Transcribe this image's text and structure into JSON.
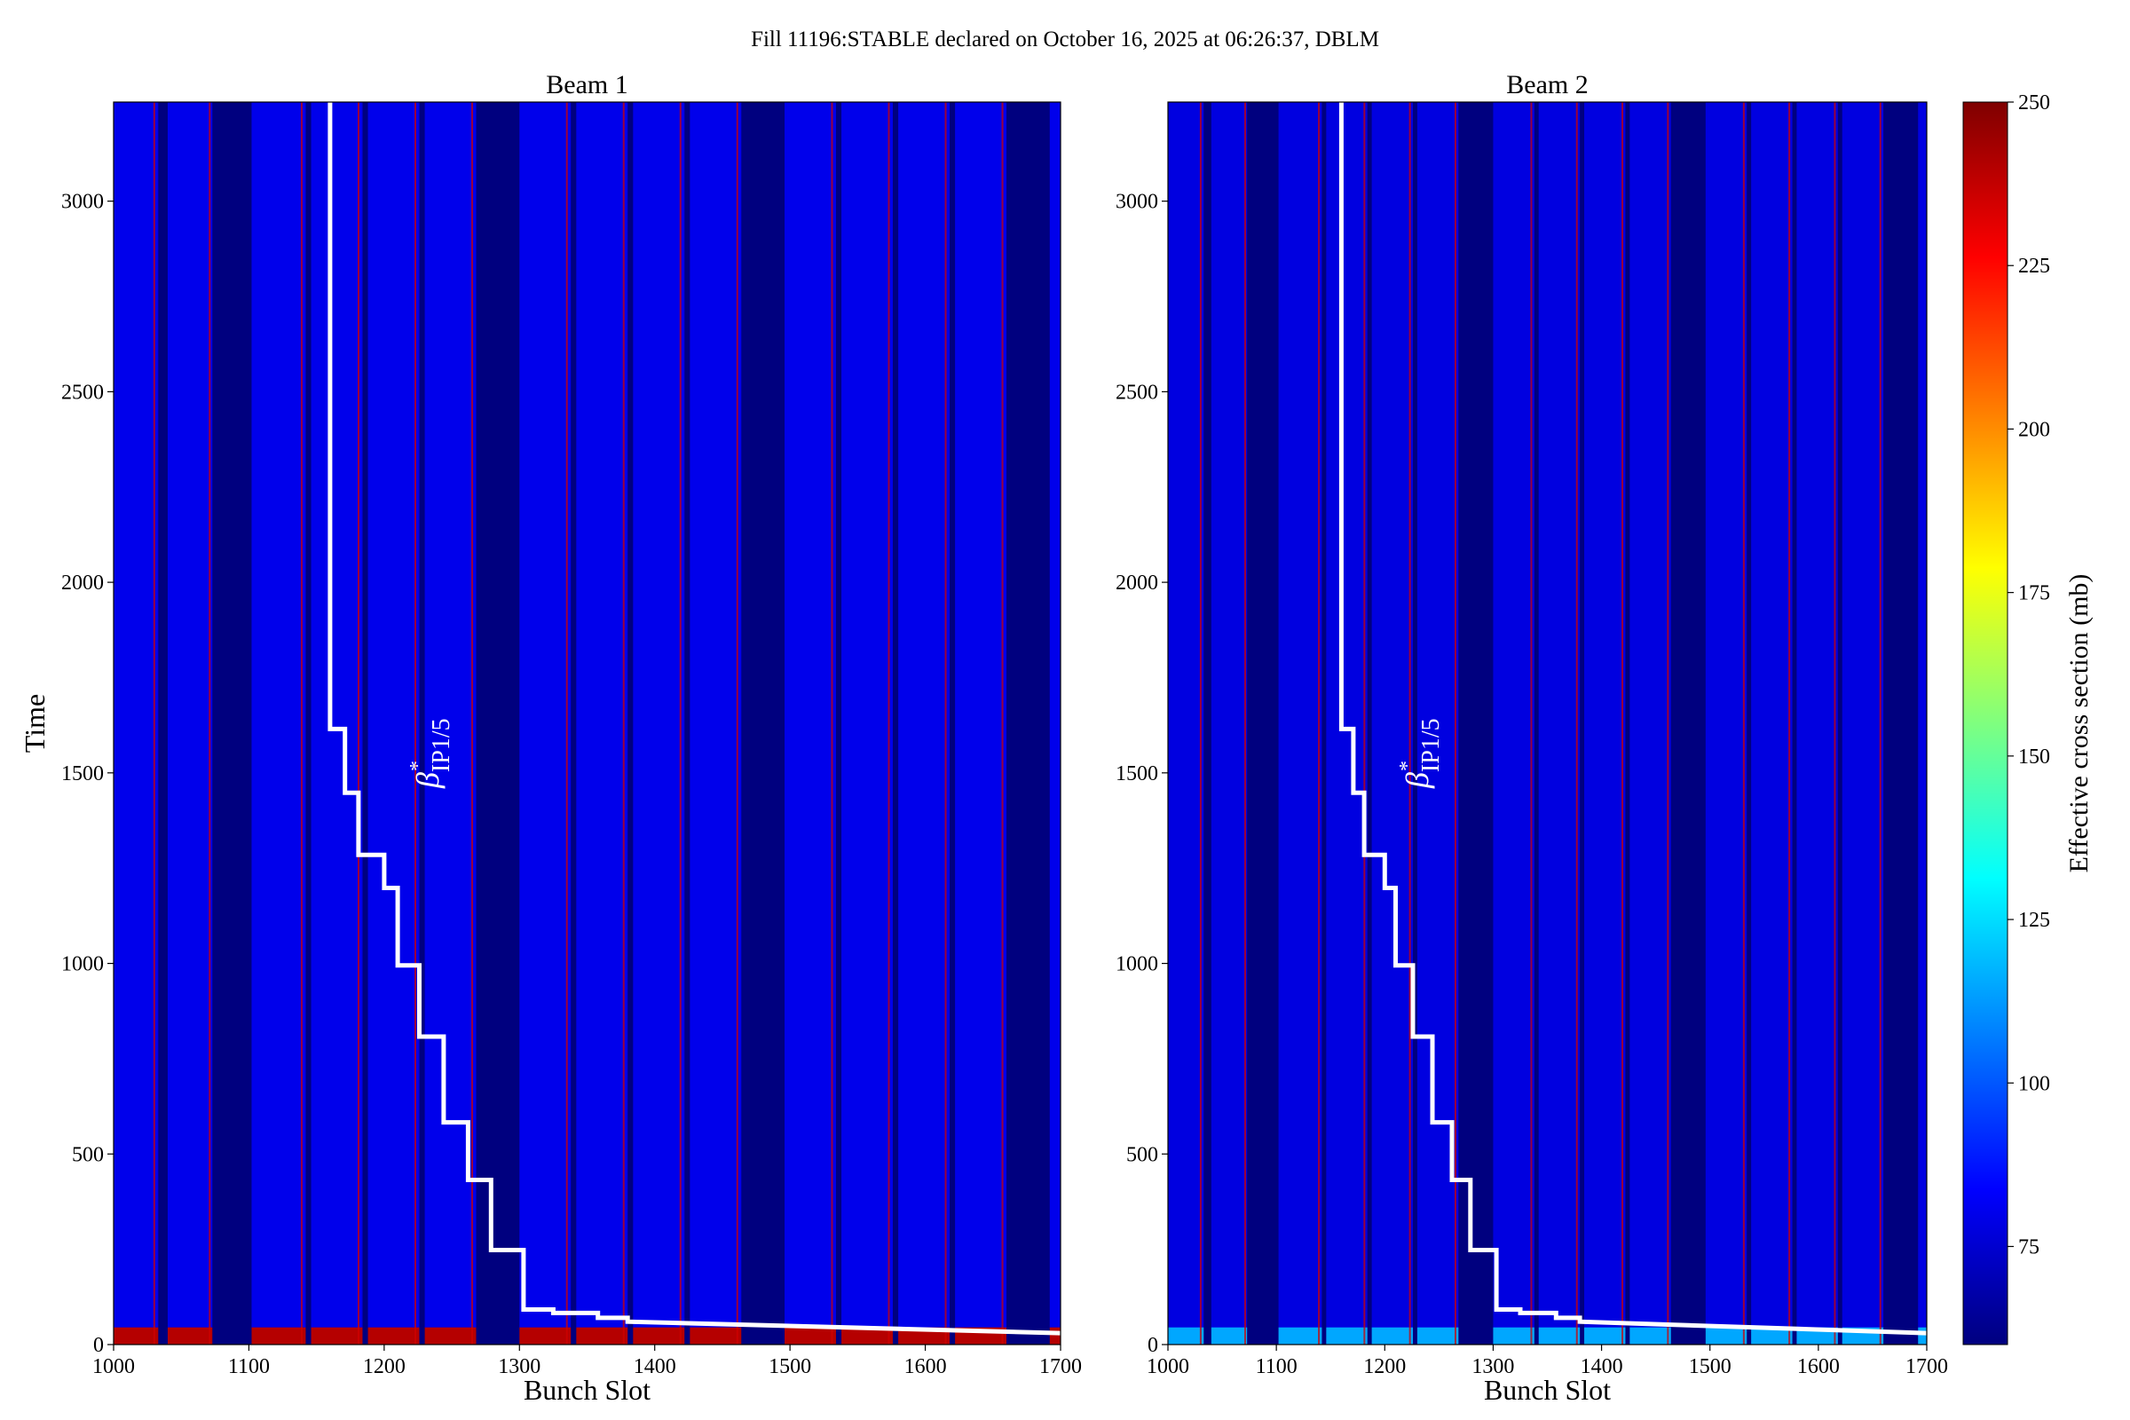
{
  "figure": {
    "suptitle": "Fill 11196:STABLE declared on October 16, 2025 at 06:26:37, DBLM"
  },
  "colorbar": {
    "label": "Effective cross section (mb)",
    "ticks": [
      75,
      100,
      125,
      150,
      175,
      200,
      225,
      250
    ],
    "range": [
      60,
      250
    ],
    "colormap": [
      "#00007f",
      "#0000ff",
      "#007fff",
      "#00ffff",
      "#7fff7f",
      "#ffff00",
      "#ff7f00",
      "#ff0000",
      "#7f0000"
    ]
  },
  "annotation": {
    "symbol": "β",
    "superscript": "*",
    "subscript": "IP1/5"
  },
  "chart_data": [
    {
      "type": "heatmap",
      "title": "Beam 1",
      "xlabel": "Bunch Slot",
      "ylabel": "Time",
      "xlim": [
        1000,
        1700
      ],
      "ylim": [
        0,
        3260
      ],
      "xticks": [
        1000,
        1100,
        1200,
        1300,
        1400,
        1500,
        1600,
        1700
      ],
      "yticks": [
        0,
        500,
        1000,
        1500,
        2000,
        2500,
        3000
      ],
      "empty_slot_ranges": [
        [
          1033,
          1040
        ],
        [
          1073,
          1102
        ],
        [
          1142,
          1146
        ],
        [
          1184,
          1188
        ],
        [
          1226,
          1230
        ],
        [
          1268,
          1300
        ],
        [
          1338,
          1342
        ],
        [
          1380,
          1384
        ],
        [
          1422,
          1426
        ],
        [
          1464,
          1496
        ],
        [
          1534,
          1538
        ],
        [
          1576,
          1580
        ],
        [
          1618,
          1622
        ],
        [
          1660,
          1692
        ]
      ],
      "high_cross_section_columns": [
        1030,
        1071,
        1139,
        1181,
        1223,
        1265,
        1335,
        1377,
        1419,
        1461,
        1531,
        1573,
        1615,
        1657
      ],
      "filled_background_value": 80,
      "low_time_hot_band": {
        "time_range": [
          0,
          45
        ],
        "value": 240
      },
      "beta_star_curve": {
        "x": [
          1160,
          1160,
          1171,
          1171,
          1181,
          1181,
          1200,
          1200,
          1210,
          1210,
          1226,
          1226,
          1244,
          1244,
          1262,
          1262,
          1279,
          1279,
          1303,
          1303,
          1325,
          1325,
          1358,
          1358,
          1380,
          1380,
          1700
        ],
        "y": [
          3260,
          1615,
          1615,
          1448,
          1448,
          1285,
          1285,
          1198,
          1198,
          995,
          995,
          808,
          808,
          583,
          583,
          432,
          432,
          248,
          248,
          92,
          92,
          83,
          83,
          70,
          70,
          60,
          30
        ]
      }
    },
    {
      "type": "heatmap",
      "title": "Beam 2",
      "xlabel": "Bunch Slot",
      "ylabel": "",
      "xlim": [
        1000,
        1700
      ],
      "ylim": [
        0,
        3260
      ],
      "xticks": [
        1000,
        1100,
        1200,
        1300,
        1400,
        1500,
        1600,
        1700
      ],
      "yticks": [
        0,
        500,
        1000,
        1500,
        2000,
        2500,
        3000
      ],
      "empty_slot_ranges": [
        [
          1033,
          1040
        ],
        [
          1073,
          1102
        ],
        [
          1142,
          1146
        ],
        [
          1184,
          1188
        ],
        [
          1226,
          1230
        ],
        [
          1268,
          1300
        ],
        [
          1338,
          1342
        ],
        [
          1380,
          1384
        ],
        [
          1422,
          1426
        ],
        [
          1464,
          1496
        ],
        [
          1534,
          1538
        ],
        [
          1576,
          1580
        ],
        [
          1618,
          1622
        ],
        [
          1660,
          1692
        ]
      ],
      "high_cross_section_columns": [
        1030,
        1071,
        1139,
        1181,
        1223,
        1265,
        1335,
        1377,
        1419,
        1461,
        1531,
        1573,
        1615,
        1657
      ],
      "filled_background_value": 78,
      "low_time_hot_band": {
        "time_range": [
          0,
          45
        ],
        "value": 115
      },
      "beta_star_curve": {
        "x": [
          1160,
          1160,
          1171,
          1171,
          1181,
          1181,
          1200,
          1200,
          1210,
          1210,
          1226,
          1226,
          1244,
          1244,
          1262,
          1262,
          1279,
          1279,
          1303,
          1303,
          1325,
          1325,
          1358,
          1358,
          1380,
          1380,
          1700
        ],
        "y": [
          3260,
          1615,
          1615,
          1448,
          1448,
          1285,
          1285,
          1198,
          1198,
          995,
          995,
          808,
          808,
          583,
          583,
          432,
          432,
          248,
          248,
          92,
          92,
          83,
          83,
          70,
          70,
          60,
          30
        ]
      }
    }
  ]
}
